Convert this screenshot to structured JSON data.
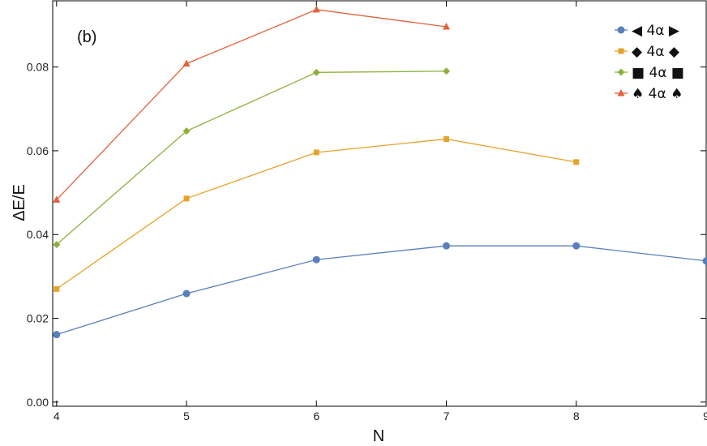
{
  "chart_data": {
    "type": "line",
    "panel_label": "(b)",
    "xlabel": "N",
    "ylabel": "ΔE/E",
    "xlim": [
      3.97,
      9.0
    ],
    "ylim": [
      -0.001,
      0.0958
    ],
    "x_ticks": [
      4,
      5,
      6,
      7,
      8,
      9
    ],
    "x_tick_labels": [
      "4",
      "5",
      "6",
      "7",
      "8",
      "9"
    ],
    "y_ticks": [
      0.0,
      0.02,
      0.04,
      0.06,
      0.08
    ],
    "y_tick_labels": [
      "0.00",
      "0.02",
      "0.04",
      "0.06",
      "0.08"
    ],
    "grid": false,
    "legend_position": "top-right",
    "series": [
      {
        "name": "◀ 4α ▶",
        "color": "#5b7fba",
        "marker": "circle",
        "x": [
          4,
          5,
          6,
          7,
          8,
          9
        ],
        "values": [
          0.0161,
          0.0259,
          0.034,
          0.0373,
          0.0373,
          0.0337
        ]
      },
      {
        "name": "◆ 4α ◆",
        "color": "#e6a32a",
        "marker": "square",
        "x": [
          4,
          5,
          6,
          7,
          8
        ],
        "values": [
          0.027,
          0.0486,
          0.0596,
          0.0628,
          0.0573
        ]
      },
      {
        "name": "■ 4α ■",
        "color": "#8db03c",
        "marker": "diamond",
        "x": [
          4,
          5,
          6,
          7
        ],
        "values": [
          0.0376,
          0.0647,
          0.0787,
          0.079
        ]
      },
      {
        "name": "♠ 4α ♠",
        "color": "#e2603a",
        "marker": "triangle",
        "x": [
          4,
          5,
          6,
          7
        ],
        "values": [
          0.0483,
          0.0808,
          0.0937,
          0.0896
        ]
      }
    ]
  }
}
